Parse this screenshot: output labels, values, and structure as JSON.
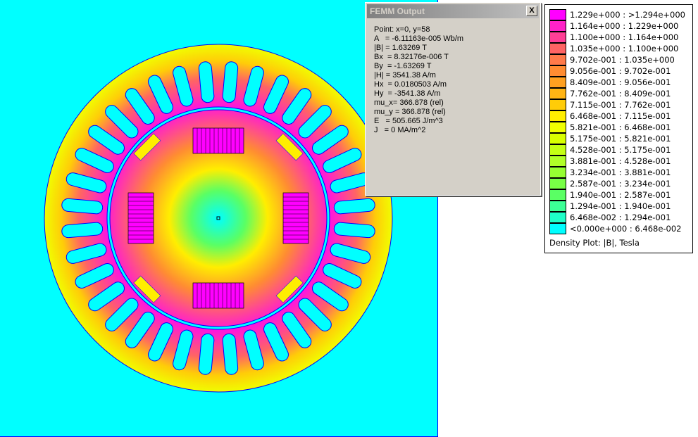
{
  "output_window": {
    "title": "FEMM Output",
    "close_label": "X",
    "lines": [
      "Point: x=0, y=58",
      "A   = -6.11163e-005 Wb/m",
      "|B| = 1.63269 T",
      "Bx  = 8.32176e-006 T",
      "By  = -1.63269 T",
      "|H| = 3541.38 A/m",
      "Hx  = 0.0180503 A/m",
      "Hy  = -3541.38 A/m",
      "mu_x= 366.878 (rel)",
      "mu_y = 366.878 (rel)",
      "E   = 505.665 J/m^3",
      "J   = 0 MA/m^2"
    ]
  },
  "legend": {
    "caption": "Density Plot: |B|, Tesla",
    "entries": [
      {
        "label": "1.229e+000 : >1.294e+000",
        "color": "#ff00ff"
      },
      {
        "label": "1.164e+000 : 1.229e+000",
        "color": "#ff22c8"
      },
      {
        "label": "1.100e+000 : 1.164e+000",
        "color": "#ff3f96"
      },
      {
        "label": "1.035e+000 : 1.100e+000",
        "color": "#ff6464"
      },
      {
        "label": "9.702e-001 : 1.035e+000",
        "color": "#ff7a4a"
      },
      {
        "label": "9.056e-001 : 9.702e-001",
        "color": "#ff8c32"
      },
      {
        "label": "8.409e-001 : 9.056e-001",
        "color": "#ffa020"
      },
      {
        "label": "7.762e-001 : 8.409e-001",
        "color": "#ffb414"
      },
      {
        "label": "7.115e-001 : 7.762e-001",
        "color": "#ffcc08"
      },
      {
        "label": "6.468e-001 : 7.115e-001",
        "color": "#ffee00"
      },
      {
        "label": "5.821e-001 : 6.468e-001",
        "color": "#f0ff00"
      },
      {
        "label": "5.175e-001 : 5.821e-001",
        "color": "#d8ff00"
      },
      {
        "label": "4.528e-001 : 5.175e-001",
        "color": "#c4ff14"
      },
      {
        "label": "3.881e-001 : 4.528e-001",
        "color": "#b0ff28"
      },
      {
        "label": "3.234e-001 : 3.881e-001",
        "color": "#96ff32"
      },
      {
        "label": "2.587e-001 : 3.234e-001",
        "color": "#78ff46"
      },
      {
        "label": "1.940e-001 : 2.587e-001",
        "color": "#5aff64"
      },
      {
        "label": "1.294e-001 : 1.940e-001",
        "color": "#3cff96"
      },
      {
        "label": "6.468e-002 : 1.294e-001",
        "color": "#1effc8"
      },
      {
        "label": "<0.000e+000 : 6.468e-002",
        "color": "#00ffff"
      }
    ]
  }
}
